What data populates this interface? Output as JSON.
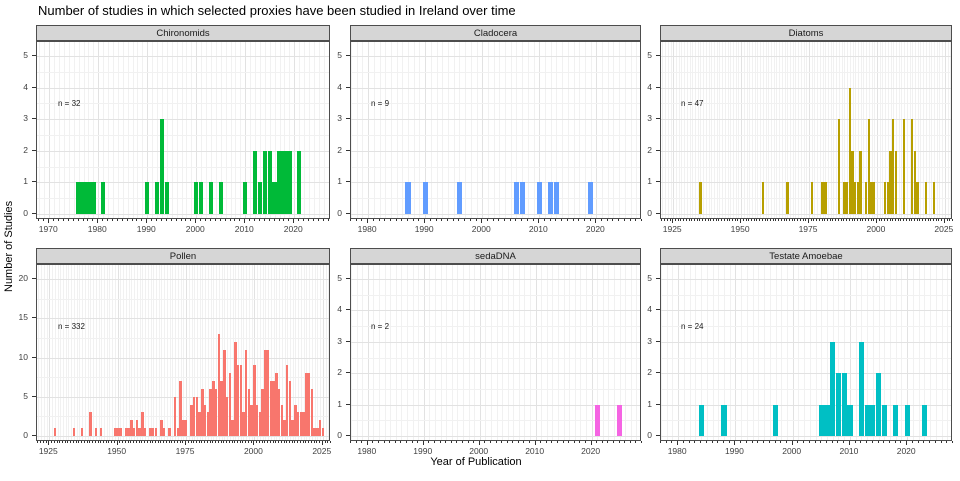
{
  "title": "Number of studies in which selected proxies have been studied in Ireland over time",
  "theme": {
    "strip_bg": "#d6d6d6",
    "panel_border": "#4d4d4d",
    "grid_major": "#e2e2e2",
    "grid_minor": "#f1f1f1",
    "tick_color": "#333333",
    "axis_text_color": "#404040"
  },
  "chart_data": {
    "type": "bar",
    "title": "Number of studies in which selected proxies have been studied in Ireland over time",
    "xlabel": "Year of Publication",
    "ylabel": "Number of Studies",
    "legend": "none",
    "grid": true,
    "facets": [
      {
        "label": "Chironomids",
        "annotation": "n = 32",
        "color": "#00BA38",
        "x_domain": [
          1967.5,
          2027.5
        ],
        "x_ticks": [
          1970,
          1980,
          1990,
          2000,
          2010,
          2020
        ],
        "y_max": 5,
        "y_ticks": [
          0,
          1,
          2,
          3,
          4,
          5
        ],
        "y_minor_step": 0.5,
        "years": [
          1976,
          1977,
          1978,
          1979,
          1981,
          1990,
          1992,
          1993,
          1994,
          2000,
          2001,
          2003,
          2005,
          2010,
          2012,
          2013,
          2014,
          2015,
          2016,
          2017,
          2018,
          2019,
          2021
        ],
        "counts": [
          1,
          1,
          1,
          1,
          1,
          1,
          1,
          3,
          1,
          1,
          1,
          1,
          1,
          1,
          2,
          1,
          2,
          2,
          1,
          2,
          2,
          2,
          2
        ]
      },
      {
        "label": "Cladocera",
        "annotation": "n = 9",
        "color": "#619CFF",
        "x_domain": [
          1977,
          2028
        ],
        "x_ticks": [
          1980,
          1990,
          2000,
          2010,
          2020
        ],
        "y_max": 5,
        "y_ticks": [
          0,
          1,
          2,
          3,
          4,
          5
        ],
        "y_minor_step": 0.5,
        "years": [
          1987,
          1990,
          1996,
          2006,
          2007,
          2010,
          2012,
          2013,
          2019
        ],
        "counts": [
          1,
          1,
          1,
          1,
          1,
          1,
          1,
          1,
          1
        ]
      },
      {
        "label": "Diatoms",
        "annotation": "n = 47",
        "color": "#B79F00",
        "x_domain": [
          1920.5,
          2028
        ],
        "x_ticks": [
          1925,
          1950,
          1975,
          2000,
          2025
        ],
        "y_max": 5,
        "y_ticks": [
          0,
          1,
          2,
          3,
          4,
          5
        ],
        "y_minor_step": 0.5,
        "years": [
          1935,
          1958,
          1967,
          1976,
          1980,
          1981,
          1986,
          1988,
          1989,
          1990,
          1991,
          1992,
          1993,
          1994,
          1996,
          1997,
          1998,
          1999,
          2003,
          2004,
          2005,
          2006,
          2007,
          2010,
          2013,
          2014,
          2015,
          2018,
          2021
        ],
        "counts": [
          1,
          1,
          1,
          1,
          1,
          1,
          3,
          1,
          1,
          4,
          2,
          1,
          1,
          2,
          1,
          3,
          1,
          1,
          1,
          1,
          2,
          3,
          2,
          3,
          3,
          2,
          1,
          1,
          1
        ]
      },
      {
        "label": "Pollen",
        "annotation": "n = 332",
        "color": "#F8766D",
        "x_domain": [
          1920.5,
          2028
        ],
        "x_ticks": [
          1925,
          1950,
          1975,
          2000,
          2025
        ],
        "y_max": 20,
        "y_ticks": [
          0,
          5,
          10,
          15,
          20
        ],
        "y_minor_step": 2.5,
        "years": [
          1927,
          1934,
          1937,
          1940,
          1942,
          1944,
          1949,
          1950,
          1951,
          1953,
          1954,
          1955,
          1956,
          1957,
          1958,
          1959,
          1960,
          1962,
          1963,
          1964,
          1966,
          1967,
          1969,
          1971,
          1972,
          1973,
          1974,
          1975,
          1977,
          1978,
          1979,
          1980,
          1981,
          1982,
          1983,
          1984,
          1985,
          1986,
          1987,
          1988,
          1989,
          1990,
          1991,
          1992,
          1993,
          1994,
          1995,
          1996,
          1997,
          1998,
          1999,
          2000,
          2001,
          2002,
          2003,
          2004,
          2005,
          2006,
          2007,
          2008,
          2009,
          2010,
          2011,
          2012,
          2013,
          2014,
          2015,
          2016,
          2017,
          2018,
          2019,
          2020,
          2021,
          2022,
          2023,
          2024,
          2025
        ],
        "counts": [
          1,
          1,
          1,
          3,
          1,
          1,
          1,
          1,
          1,
          1,
          1,
          2,
          1,
          2,
          1,
          3,
          1,
          1,
          1,
          1,
          2,
          1,
          1,
          5,
          1,
          7,
          2,
          2,
          4,
          5,
          5,
          3,
          6,
          4,
          3,
          6,
          7,
          6,
          13,
          7,
          11,
          5,
          8,
          2,
          12,
          9,
          9,
          3,
          11,
          6,
          4,
          9,
          4,
          3,
          6,
          11,
          11,
          7,
          7,
          8,
          6,
          4,
          2,
          9,
          7,
          2,
          4,
          3,
          3,
          3,
          8,
          8,
          6,
          1,
          1,
          2,
          1
        ]
      },
      {
        "label": "sedaDNA",
        "annotation": "n = 2",
        "color": "#F564E3",
        "x_domain": [
          1977,
          2029
        ],
        "x_ticks": [
          1980,
          1990,
          2000,
          2010,
          2020
        ],
        "y_max": 5,
        "y_ticks": [
          0,
          1,
          2,
          3,
          4,
          5
        ],
        "y_minor_step": 0.5,
        "years": [
          2021,
          2025
        ],
        "counts": [
          1,
          1
        ]
      },
      {
        "label": "Testate Amoebae",
        "annotation": "n = 24",
        "color": "#00BFC4",
        "x_domain": [
          1977,
          2028
        ],
        "x_ticks": [
          1980,
          1990,
          2000,
          2010,
          2020
        ],
        "y_max": 5,
        "y_ticks": [
          0,
          1,
          2,
          3,
          4,
          5
        ],
        "y_minor_step": 0.5,
        "years": [
          1984,
          1988,
          1997,
          2005,
          2006,
          2007,
          2008,
          2009,
          2010,
          2012,
          2013,
          2014,
          2015,
          2016,
          2018,
          2020,
          2023
        ],
        "counts": [
          1,
          1,
          1,
          1,
          1,
          3,
          2,
          2,
          1,
          3,
          1,
          1,
          2,
          1,
          1,
          1,
          1
        ]
      }
    ]
  }
}
